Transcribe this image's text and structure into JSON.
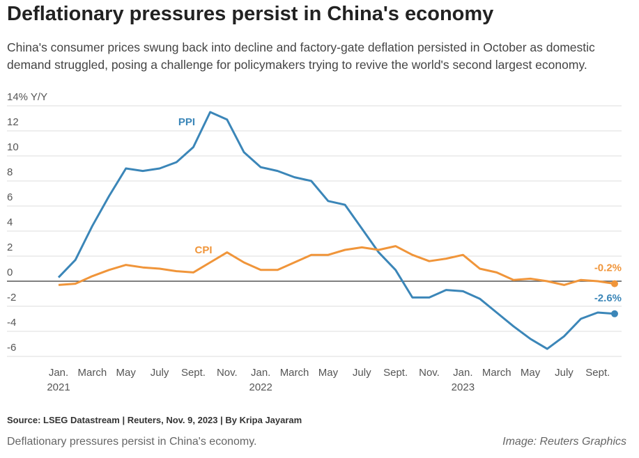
{
  "chart_data": {
    "type": "line",
    "title": "Deflationary pressures persist in China's economy",
    "subtitle": "China's consumer prices swung back into decline and factory-gate deflation persisted in October as domestic demand struggled, posing a challenge for policymakers trying to revive the world's second largest economy.",
    "source": "Source: LSEG Datastream | Reuters, Nov. 9, 2023 | By Kripa Jayaram",
    "caption": "Deflationary pressures persist in China's economy.",
    "credit": "Image: Reuters Graphics",
    "categories": [
      "Jan.\n2021",
      null,
      "March",
      null,
      "May",
      null,
      "July",
      null,
      "Sept.",
      null,
      "Nov.",
      null,
      "Jan.\n2022",
      null,
      "March",
      null,
      "May",
      null,
      "July",
      null,
      "Sept.",
      null,
      "Nov.",
      null,
      "Jan.\n2023",
      null,
      "March",
      null,
      "May",
      null,
      "July",
      null,
      "Sept.",
      null
    ],
    "series": [
      {
        "name": "PPI",
        "color": "#3b86b8",
        "values": [
          0.3,
          1.7,
          4.4,
          6.8,
          9.0,
          8.8,
          9.0,
          9.5,
          10.7,
          13.5,
          12.9,
          10.3,
          9.1,
          8.8,
          8.3,
          8.0,
          6.4,
          6.1,
          4.2,
          2.3,
          0.9,
          -1.3,
          -1.3,
          -0.7,
          -0.8,
          -1.4,
          -2.5,
          -3.6,
          -4.6,
          -5.4,
          -4.4,
          -3.0,
          -2.5,
          -2.6
        ],
        "value_labels": [
          null,
          null,
          null,
          null,
          null,
          null,
          null,
          null,
          null,
          null,
          null,
          null,
          null,
          null,
          null,
          null,
          null,
          null,
          null,
          null,
          null,
          null,
          null,
          null,
          null,
          null,
          null,
          null,
          null,
          null,
          null,
          null,
          null,
          "-2.6%"
        ]
      },
      {
        "name": "CPI",
        "color": "#f0953a",
        "values": [
          -0.3,
          -0.2,
          0.4,
          0.9,
          1.3,
          1.1,
          1.0,
          0.8,
          0.7,
          1.5,
          2.3,
          1.5,
          0.9,
          0.9,
          1.5,
          2.1,
          2.1,
          2.5,
          2.7,
          2.5,
          2.8,
          2.1,
          1.6,
          1.8,
          2.1,
          1.0,
          0.7,
          0.1,
          0.2,
          0.0,
          -0.3,
          0.1,
          0.0,
          -0.2
        ],
        "value_labels": [
          null,
          null,
          null,
          null,
          null,
          null,
          null,
          null,
          null,
          null,
          null,
          null,
          null,
          null,
          null,
          null,
          null,
          null,
          null,
          null,
          null,
          null,
          null,
          null,
          null,
          null,
          null,
          null,
          null,
          null,
          null,
          null,
          null,
          "-0.2%"
        ]
      }
    ],
    "ylim": [
      -6,
      14
    ],
    "yticks": [
      -6,
      -4,
      -2,
      0,
      2,
      4,
      6,
      8,
      10,
      12,
      {
        "value": 14,
        "label": "14% Y/Y"
      }
    ],
    "grid": true
  }
}
